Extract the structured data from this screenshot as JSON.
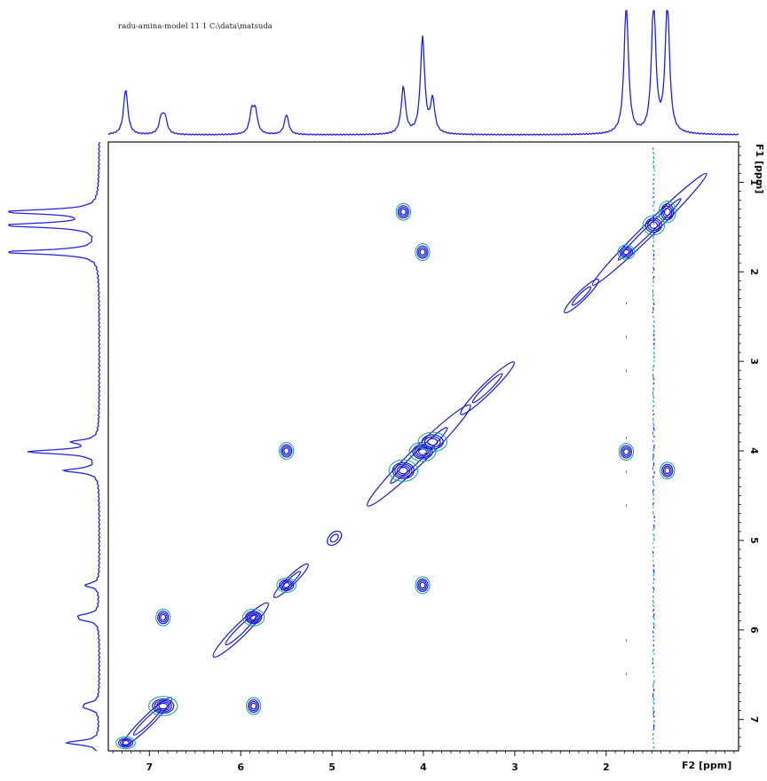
{
  "header": {
    "text": "radu-amina-model   11   1   C:\\data\\matsuda"
  },
  "colors": {
    "spectrum": "#2222dd",
    "positive_contour": "#1a1ad6",
    "negative_contour": "#14a0a0",
    "frame": "#111111",
    "background": "#ffffff"
  },
  "chart_data": {
    "type": "heatmap",
    "title": "",
    "subtitle": "radu-amina-model   11   1   C:\\data\\matsuda",
    "xlabel": "F2 [ppm]",
    "ylabel": "F1 [ppm]",
    "xlim": [
      7.45,
      0.55
    ],
    "ylim": [
      0.55,
      7.35
    ],
    "x_ticks": [
      7,
      6,
      5,
      4,
      3,
      2
    ],
    "y_ticks": [
      1,
      2,
      3,
      4,
      5,
      6,
      7
    ],
    "x_tick_labels": [
      "7",
      "6",
      "5",
      "4",
      "3",
      "2"
    ],
    "y_tick_labels": [
      "1",
      "2",
      "3",
      "4",
      "5",
      "6",
      "7"
    ],
    "grid": false,
    "projection_1d_peaks": [
      {
        "ppm": 7.26,
        "intensity": 0.34
      },
      {
        "ppm": 6.87,
        "intensity": 0.12
      },
      {
        "ppm": 6.83,
        "intensity": 0.12
      },
      {
        "ppm": 5.88,
        "intensity": 0.16
      },
      {
        "ppm": 5.84,
        "intensity": 0.16
      },
      {
        "ppm": 5.5,
        "intensity": 0.15
      },
      {
        "ppm": 4.22,
        "intensity": 0.35
      },
      {
        "ppm": 4.01,
        "intensity": 0.72
      },
      {
        "ppm": 3.9,
        "intensity": 0.25
      },
      {
        "ppm": 1.78,
        "intensity": 1.0
      },
      {
        "ppm": 1.48,
        "intensity": 1.0
      },
      {
        "ppm": 1.33,
        "intensity": 1.0
      }
    ],
    "diagonal_peaks": [
      {
        "x": 7.26,
        "y": 7.26
      },
      {
        "x": 6.85,
        "y": 6.85
      },
      {
        "x": 5.86,
        "y": 5.86
      },
      {
        "x": 5.5,
        "y": 5.5
      },
      {
        "x": 4.22,
        "y": 4.22
      },
      {
        "x": 4.01,
        "y": 4.01
      },
      {
        "x": 3.9,
        "y": 3.9
      },
      {
        "x": 1.78,
        "y": 1.78
      },
      {
        "x": 1.48,
        "y": 1.48
      },
      {
        "x": 1.33,
        "y": 1.33
      }
    ],
    "cross_peaks": [
      {
        "x": 4.22,
        "y": 1.33
      },
      {
        "x": 1.33,
        "y": 4.22
      },
      {
        "x": 6.85,
        "y": 5.86
      },
      {
        "x": 5.86,
        "y": 6.85
      },
      {
        "x": 5.5,
        "y": 4.0
      },
      {
        "x": 4.01,
        "y": 5.5
      },
      {
        "x": 4.01,
        "y": 1.78
      },
      {
        "x": 1.78,
        "y": 4.01
      }
    ],
    "t1_noise_ridge_ppm": 1.48
  }
}
